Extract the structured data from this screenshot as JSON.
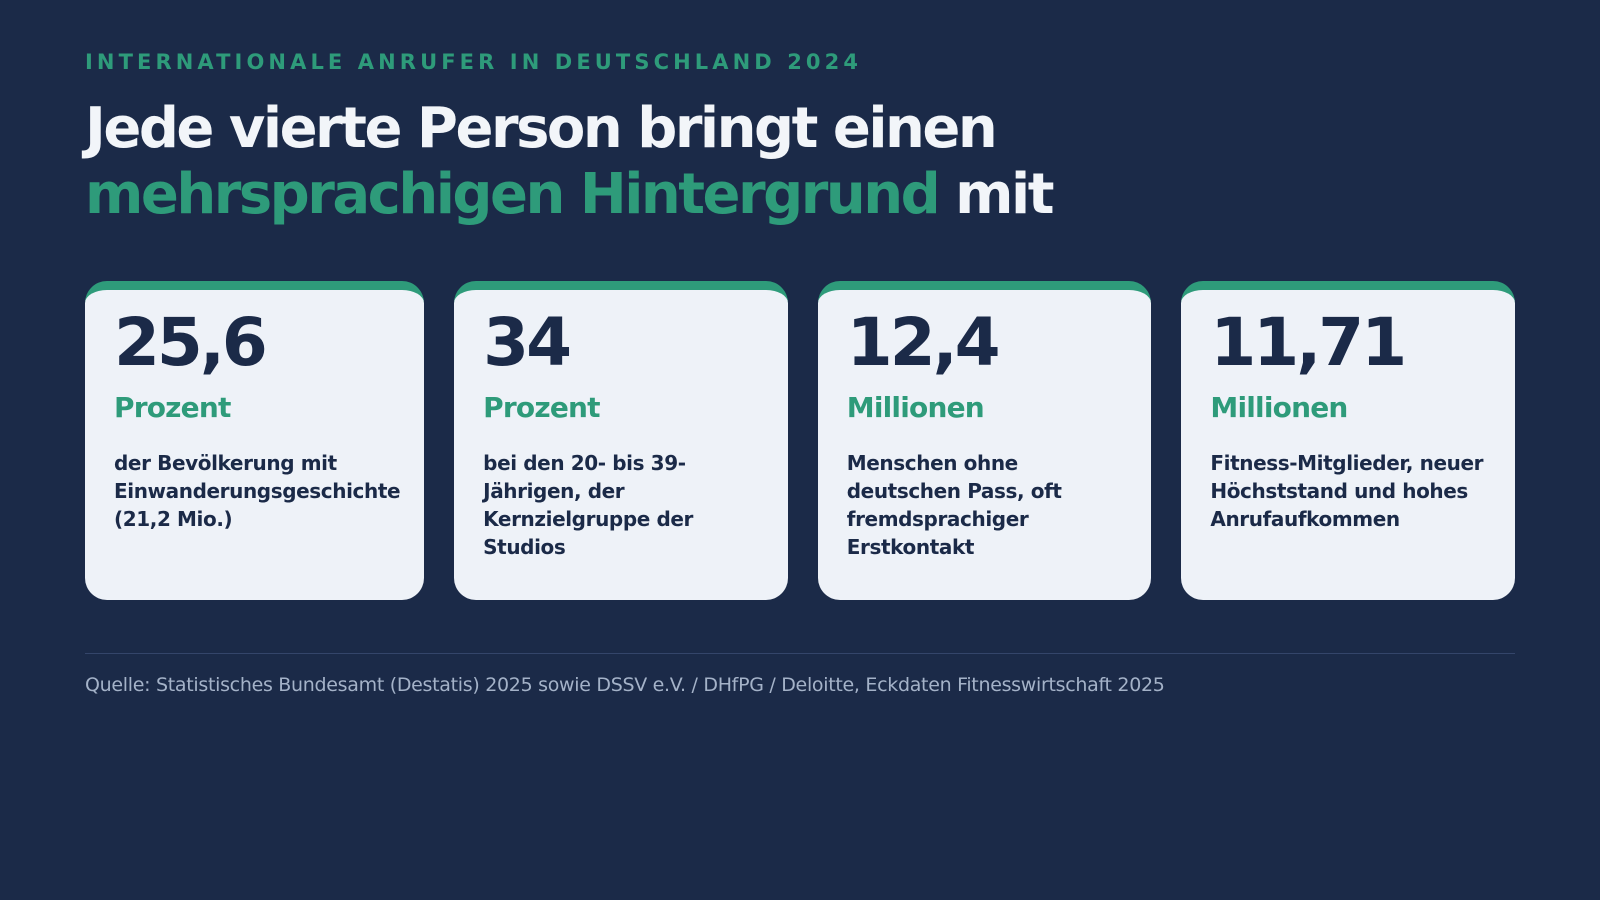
{
  "eyebrow": "INTERNATIONALE ANRUFER IN DEUTSCHLAND 2024",
  "headline": {
    "line1": "Jede vierte Person bringt einen",
    "line2_accent": "mehrsprachigen Hintergrund",
    "line2_rest": " mit"
  },
  "cards": [
    {
      "number": "25,6",
      "unit": "Prozent",
      "description": "der Bevölkerung mit Einwanderungsgeschichte (21,2 Mio.)"
    },
    {
      "number": "34",
      "unit": "Prozent",
      "description": "bei den 20- bis 39-Jährigen, der Kernzielgruppe der Studios"
    },
    {
      "number": "12,4",
      "unit": "Millionen",
      "description": "Menschen ohne deutschen Pass, oft fremdsprachiger Erstkontakt"
    },
    {
      "number": "11,71",
      "unit": "Millionen",
      "description": "Fitness-Mitglieder, neuer Höchststand und hohes Anrufaufkommen"
    }
  ],
  "source": "Quelle: Statistisches Bundesamt (Destatis) 2025 sowie DSSV e.V. / DHfPG / Deloitte, Eckdaten Fitnesswirtschaft 2025",
  "colors": {
    "background": "#1b2a48",
    "accent": "#2e9b7a",
    "card_background": "#eef2f8",
    "text_light": "#f2f5f9",
    "text_dark": "#1b2a48",
    "source_text": "#a4b2c8"
  }
}
